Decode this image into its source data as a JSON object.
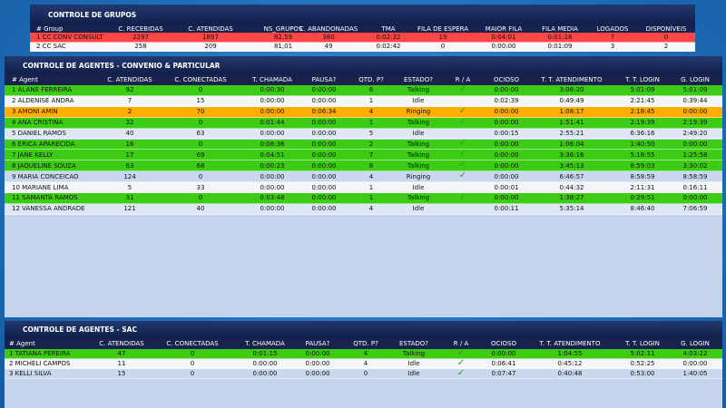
{
  "groups": {
    "title": "CONTROLE DE GRUPOS",
    "columns": [
      "# Group",
      "C. RECEBIDAS",
      "C. ATENDIDAS",
      "NS_GRUPOS",
      "C. ABANDONADAS",
      "TMA",
      "FILA DE ESPERA",
      "MAIOR FILA",
      "FILA MEDIA",
      "LOGADOS",
      "DISPONÍVEIS"
    ],
    "rows": [
      {
        "color": "#ff4646",
        "cells": [
          "1 CC CONV CONSULT",
          "2297",
          "1897",
          "82,59",
          "380",
          "0:02:32",
          "19",
          "0:04:01",
          "0:01:18",
          "7",
          "0"
        ]
      },
      {
        "color": "#f4f6fa",
        "cells": [
          "2 CC SAC",
          "258",
          "209",
          "81,01",
          "49",
          "0:02:42",
          "0",
          "0:00:00",
          "0:01:09",
          "3",
          "2"
        ]
      }
    ]
  },
  "agents": {
    "title": "CONTROLE DE AGENTES - CONVENIO & PARTICULAR",
    "columns": [
      "# Agent",
      "C. ATENDIDAS",
      "C. CONECTADAS",
      "T. CHAMADA",
      "PAUSA?",
      "QTD. P?",
      "ESTADO?",
      "R / A",
      "OCIOSO",
      "T. T. ATENDIMENTO",
      "T. T. LOGIN",
      "G. LOGIN"
    ],
    "rows": [
      {
        "color": "#3ccc14",
        "cells": [
          "1 ALANE FERREIRA",
          "92",
          "0",
          "0:00:30",
          "0:00:00",
          "6",
          "Talking",
          "✓",
          "0:00:00",
          "3:06:20",
          "5:01:09",
          "5:01:09"
        ]
      },
      {
        "color": "#f4f6fa",
        "cells": [
          "2 ALDENISE ANDRA",
          "7",
          "15",
          "0:00:00",
          "0:00:00",
          "1",
          "Idle",
          null,
          "0:02:39",
          "0:49:49",
          "2:21:45",
          "0:39:44"
        ]
      },
      {
        "color": "#ffae00",
        "cells": [
          "3 AMONI AMIN",
          "2",
          "70",
          "0:00:00",
          "0:06:34",
          "4",
          "Ringing",
          "✓",
          "0:00:00",
          "1:08:17",
          "2:18:45",
          "0:00:00"
        ]
      },
      {
        "color": "#3ccc14",
        "cells": [
          "4 ANA CRISTINA",
          "32",
          "0",
          "0:01:44",
          "0:00:00",
          "1",
          "Talking",
          "✓",
          "0:00:00",
          "1:51:41",
          "2:19:39",
          "2:19:39"
        ]
      },
      {
        "color": "#dfe7f4",
        "cells": [
          "5 DANIEL RAMOS",
          "40",
          "63",
          "0:00:00",
          "0:00:00",
          "5",
          "Idle",
          null,
          "0:00:15",
          "2:55:21",
          "6:36:16",
          "2:49:20"
        ]
      },
      {
        "color": "#3ccc14",
        "cells": [
          "6 ERICA APARECIDA",
          "16",
          "0",
          "0:08:36",
          "0:00:00",
          "2",
          "Talking",
          "✓",
          "0:00:00",
          "1:06:04",
          "1:40:50",
          "0:00:00"
        ]
      },
      {
        "color": "#3ccc14",
        "cells": [
          "7 JANE KELLY",
          "17",
          "69",
          "0:04:51",
          "0:00:00",
          "7",
          "Talking",
          "✓",
          "0:00:00",
          "3:36:16",
          "5:18:55",
          "1:25:58"
        ]
      },
      {
        "color": "#3ccc14",
        "cells": [
          "8 JAQUELINE SOUZA",
          "63",
          "68",
          "0:00:23",
          "0:00:00",
          "8",
          "Talking",
          "✓",
          "0:00:00",
          "3:45:13",
          "8:59:03",
          "3:30:02"
        ]
      },
      {
        "color": "#c9d8ef",
        "cells": [
          "9 MARIA CONCEICAO",
          "124",
          "0",
          "0:00:00",
          "0:00:00",
          "4",
          "Ringing",
          "✓",
          "0:00:00",
          "6:46:57",
          "8:58:59",
          "8:58:59"
        ]
      },
      {
        "color": "#f4f6fa",
        "cells": [
          "10 MARIANE LIMA",
          "5",
          "33",
          "0:00:00",
          "0:00:00",
          "1",
          "Idle",
          null,
          "0:00:01",
          "0:44:32",
          "2:11:31",
          "0:16:11"
        ]
      },
      {
        "color": "#3ccc14",
        "cells": [
          "11 SAMANTA RAMOS",
          "31",
          "0",
          "0:03:48",
          "0:00:00",
          "1",
          "Talking",
          "✓",
          "0:00:00",
          "1:38:27",
          "0:29:51",
          "0:00:00"
        ]
      },
      {
        "color": "#dfe7f4",
        "cells": [
          "12 VANESSA ANDRADE",
          "121",
          "40",
          "0:00:00",
          "0:00:00",
          "4",
          "Idle",
          null,
          "0:00:11",
          "5:35:14",
          "8:46:40",
          "7:06:59"
        ]
      }
    ]
  },
  "sac": {
    "title": "CONTROLE DE AGENTES - SAC",
    "columns": [
      "# Agent",
      "C. ATENDIDAS",
      "C. CONECTADAS",
      "T. CHAMADA",
      "PAUSA?",
      "QTD. P?",
      "ESTADO?",
      "R / A",
      "OCIOSO",
      "T. T. ATENDIMENTO",
      "T. T. LOGIN",
      "G. LOGIN"
    ],
    "rows": [
      {
        "color": "#3ccc14",
        "cells": [
          "1 TATIANA PEREIRA",
          "47",
          "0",
          "0:01:15",
          "0:00:00",
          "4",
          "Talking",
          "✓",
          "0:00:00",
          "1:04:55",
          "5:02:11",
          "4:03:22"
        ]
      },
      {
        "color": "#f4f6fa",
        "cells": [
          "2 MICHELI CAMPOS",
          "11",
          "0",
          "0:00:00",
          "0:00:00",
          "4",
          "Idle",
          "✓",
          "0:06:41",
          "0:45:12",
          "0:52:25",
          "0:00:00"
        ]
      },
      {
        "color": "#c9d8ef",
        "cells": [
          "3 KELLI SILVA",
          "15",
          "0",
          "0:00:00",
          "0:00:00",
          "0",
          "Idle",
          "✓",
          "0:07:47",
          "0:40:48",
          "0:53:00",
          "1:40:05"
        ]
      }
    ]
  }
}
